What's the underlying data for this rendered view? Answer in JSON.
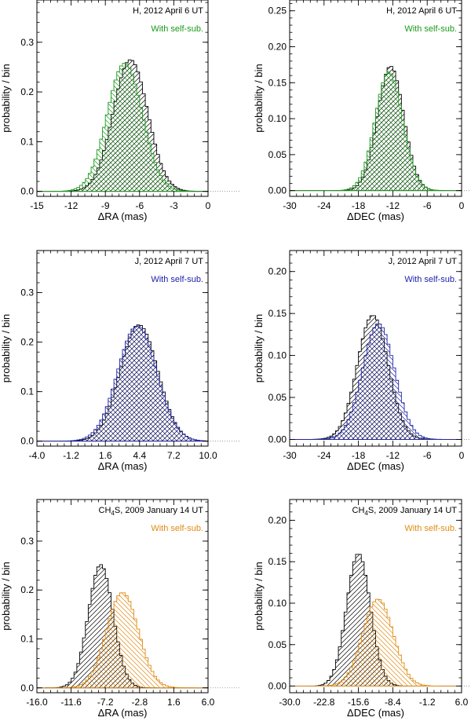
{
  "chart_data": [
    {
      "type": "histogram",
      "title_parts": [
        "H, 2012 April 6 UT"
      ],
      "legend": "With self-sub.",
      "legend_color": "#1a9a1a",
      "xlabel": "ΔRA (mas)",
      "ylabel": "probability / bin",
      "xlim": [
        -15,
        0
      ],
      "ylim": [
        -0.01,
        0.385
      ],
      "xticks": [
        "-15",
        "-12",
        "-9",
        "-6",
        "-3",
        "0"
      ],
      "yticks": [
        "0.0",
        "0.1",
        "0.2",
        "0.3"
      ],
      "series": [
        {
          "name": "",
          "distribution": "gaussian",
          "center": -6.8,
          "sigma": 1.52,
          "peak": 0.265,
          "color": "#000000"
        },
        {
          "name": "With self-sub.",
          "distribution": "gaussian",
          "center": -7.3,
          "sigma": 1.55,
          "peak": 0.258,
          "color": "#1a9a1a"
        }
      ]
    },
    {
      "type": "histogram",
      "title_parts": [
        "H, 2012 April 6 UT"
      ],
      "legend": "With self-sub.",
      "legend_color": "#1a9a1a",
      "xlabel": "ΔDEC (mas)",
      "ylabel": "probability / bin",
      "xlim": [
        -30,
        0
      ],
      "ylim": [
        -0.008,
        0.265
      ],
      "xticks": [
        "-30",
        "-24",
        "-18",
        "-12",
        "-6",
        "0"
      ],
      "yticks": [
        "0.00",
        "0.05",
        "0.10",
        "0.15",
        "0.20",
        "0.25"
      ],
      "series": [
        {
          "name": "",
          "distribution": "gaussian",
          "center": -12.4,
          "sigma": 2.3,
          "peak": 0.173,
          "color": "#000000"
        },
        {
          "name": "With self-sub.",
          "distribution": "gaussian",
          "center": -12.7,
          "sigma": 2.4,
          "peak": 0.165,
          "color": "#1a9a1a"
        }
      ]
    },
    {
      "type": "histogram",
      "title_parts": [
        "J, 2012 April 7 UT"
      ],
      "legend": "With self-sub.",
      "legend_color": "#1e22a8",
      "xlabel": "ΔRA (mas)",
      "ylabel": "probability / bin",
      "xlim": [
        -4.0,
        10.0
      ],
      "ylim": [
        -0.01,
        0.385
      ],
      "xticks": [
        "-4.0",
        "-1.2",
        "1.6",
        "4.4",
        "7.2",
        "10.0"
      ],
      "yticks": [
        "0.0",
        "0.1",
        "0.2",
        "0.3"
      ],
      "series": [
        {
          "name": "",
          "distribution": "gaussian",
          "center": 4.35,
          "sigma": 1.55,
          "peak": 0.235,
          "color": "#000000"
        },
        {
          "name": "With self-sub.",
          "distribution": "gaussian",
          "center": 4.2,
          "sigma": 1.6,
          "peak": 0.233,
          "color": "#1e22a8"
        }
      ]
    },
    {
      "type": "histogram",
      "title_parts": [
        "J, 2012 April 7 UT"
      ],
      "legend": "With self-sub.",
      "legend_color": "#1e22a8",
      "xlabel": "ΔDEC (mas)",
      "ylabel": "probability / bin",
      "xlim": [
        -30,
        0
      ],
      "ylim": [
        -0.008,
        0.225
      ],
      "xticks": [
        "-30",
        "-24",
        "-18",
        "-12",
        "-6",
        "0"
      ],
      "yticks": [
        "0.00",
        "0.05",
        "0.10",
        "0.15",
        "0.20"
      ],
      "series": [
        {
          "name": "",
          "distribution": "gaussian",
          "center": -15.5,
          "sigma": 2.7,
          "peak": 0.148,
          "color": "#000000"
        },
        {
          "name": "With self-sub.",
          "distribution": "gaussian",
          "center": -14.5,
          "sigma": 2.8,
          "peak": 0.138,
          "color": "#1e22a8"
        }
      ]
    },
    {
      "type": "histogram",
      "title_parts": [
        "CH",
        "4",
        "S, 2009 January 14 UT"
      ],
      "legend": "With self-sub.",
      "legend_color": "#e08a10",
      "xlabel": "ΔRA (mas)",
      "ylabel": "probability / bin",
      "xlim": [
        -16.0,
        6.0
      ],
      "ylim": [
        -0.01,
        0.385
      ],
      "xticks": [
        "-16.0",
        "-11.6",
        "-7.2",
        "-2.8",
        "1.6",
        "6.0"
      ],
      "yticks": [
        "0.0",
        "0.1",
        "0.2",
        "0.3"
      ],
      "series": [
        {
          "name": "",
          "distribution": "gaussian",
          "center": -7.8,
          "sigma": 1.6,
          "peak": 0.252,
          "color": "#000000"
        },
        {
          "name": "With self-sub.",
          "distribution": "gaussian",
          "center": -5.0,
          "sigma": 2.05,
          "peak": 0.195,
          "color": "#e08a10"
        }
      ]
    },
    {
      "type": "histogram",
      "title_parts": [
        "CH",
        "4",
        "S, 2009 January 14 UT"
      ],
      "legend": "With self-sub.",
      "legend_color": "#e08a10",
      "xlabel": "ΔDEC (mas)",
      "ylabel": "probability / bin",
      "xlim": [
        -30.0,
        6.0
      ],
      "ylim": [
        -0.008,
        0.225
      ],
      "xticks": [
        "-30.0",
        "-22.8",
        "-15.6",
        "-8.4",
        "-1.2",
        "6.0"
      ],
      "yticks": [
        "0.00",
        "0.05",
        "0.10",
        "0.15",
        "0.20"
      ],
      "series": [
        {
          "name": "",
          "distribution": "gaussian",
          "center": -15.6,
          "sigma": 2.5,
          "peak": 0.16,
          "color": "#000000"
        },
        {
          "name": "With self-sub.",
          "distribution": "gaussian",
          "center": -11.5,
          "sigma": 3.2,
          "peak": 0.105,
          "color": "#e08a10"
        }
      ]
    }
  ]
}
